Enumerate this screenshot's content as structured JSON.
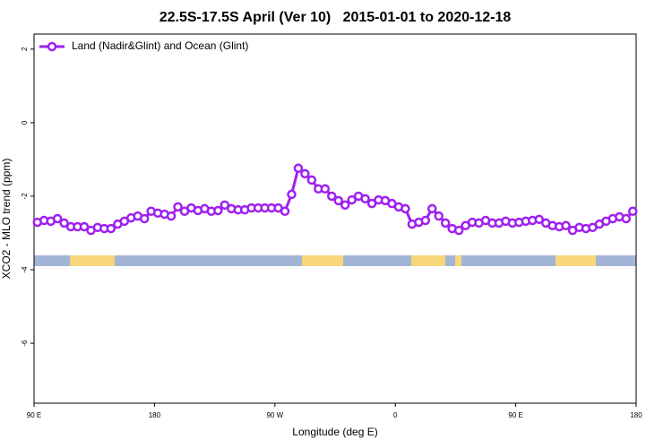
{
  "chart_data": {
    "type": "line",
    "title": "22.5S-17.5S April (Ver 10)   2015-01-01 to 2020-12-18",
    "xlabel": "Longitude (deg E)",
    "ylabel": "XCO2 - MLO trend (ppm)",
    "xlim": [
      90,
      540
    ],
    "ylim": [
      -7.63,
      2.41
    ],
    "xticks": [
      {
        "value": 90,
        "label": "90 E"
      },
      {
        "value": 180,
        "label": "180"
      },
      {
        "value": 270,
        "label": "90 W"
      },
      {
        "value": 360,
        "label": "0"
      },
      {
        "value": 450,
        "label": "90 E"
      },
      {
        "value": 540,
        "label": "180"
      }
    ],
    "yticks": [
      2,
      0,
      -2,
      -4,
      -6
    ],
    "legend": "top-left",
    "x": [
      92.5,
      97.5,
      102.5,
      107.5,
      112.5,
      117.5,
      122.5,
      127.5,
      132.5,
      137.5,
      142.5,
      147.5,
      152.5,
      157.5,
      162.5,
      167.5,
      172.5,
      177.5,
      182.5,
      187.5,
      192.5,
      197.5,
      202.5,
      207.5,
      212.5,
      217.5,
      222.5,
      227.5,
      232.5,
      237.5,
      242.5,
      247.5,
      252.5,
      257.5,
      262.5,
      267.5,
      272.5,
      277.5,
      282.5,
      287.5,
      292.5,
      297.5,
      302.5,
      307.5,
      312.5,
      317.5,
      322.5,
      327.5,
      332.5,
      337.5,
      342.5,
      347.5,
      352.5,
      357.5,
      362.5,
      367.5,
      372.5,
      377.5,
      382.5,
      387.5,
      392.5,
      397.5,
      402.5,
      407.5,
      412.5,
      417.5,
      422.5,
      427.5,
      432.5,
      437.5,
      442.5,
      447.5,
      452.5,
      457.5,
      462.5,
      467.5,
      472.5,
      477.5,
      482.5,
      487.5,
      492.5,
      497.5,
      502.5,
      507.5,
      512.5,
      517.5,
      522.5,
      527.5,
      532.5,
      537.5
    ],
    "series": [
      {
        "name": "Land (Nadir&Glint) and Ocean (Glint)",
        "color": "#a020f0",
        "values": [
          -2.71,
          -2.66,
          -2.68,
          -2.61,
          -2.73,
          -2.83,
          -2.83,
          -2.83,
          -2.93,
          -2.85,
          -2.88,
          -2.88,
          -2.76,
          -2.68,
          -2.59,
          -2.54,
          -2.61,
          -2.41,
          -2.46,
          -2.49,
          -2.54,
          -2.29,
          -2.41,
          -2.32,
          -2.39,
          -2.34,
          -2.41,
          -2.39,
          -2.24,
          -2.34,
          -2.37,
          -2.37,
          -2.32,
          -2.32,
          -2.32,
          -2.32,
          -2.32,
          -2.41,
          -1.95,
          -1.24,
          -1.39,
          -1.56,
          -1.8,
          -1.8,
          -2.0,
          -2.12,
          -2.24,
          -2.1,
          -2.0,
          -2.07,
          -2.2,
          -2.1,
          -2.12,
          -2.2,
          -2.29,
          -2.34,
          -2.76,
          -2.71,
          -2.66,
          -2.34,
          -2.54,
          -2.73,
          -2.88,
          -2.93,
          -2.8,
          -2.71,
          -2.73,
          -2.66,
          -2.73,
          -2.73,
          -2.68,
          -2.73,
          -2.71,
          -2.68,
          -2.66,
          -2.63,
          -2.73,
          -2.8,
          -2.83,
          -2.8,
          -2.93,
          -2.85,
          -2.88,
          -2.85,
          -2.76,
          -2.68,
          -2.61,
          -2.56,
          -2.61,
          -2.41
        ]
      }
    ]
  }
}
